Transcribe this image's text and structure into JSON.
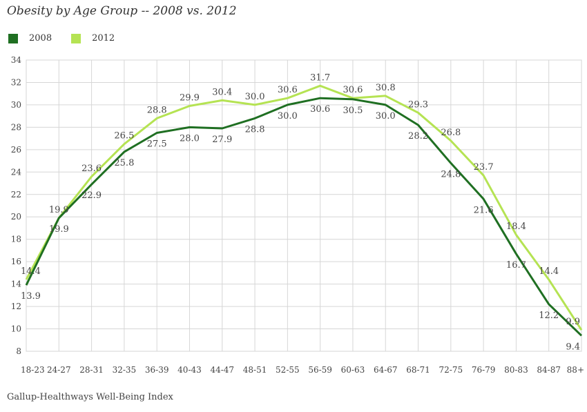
{
  "chart_data": {
    "type": "line",
    "title": "Obesity by Age Group -- 2008 vs. 2012",
    "source": "Gallup-Healthways Well-Being Index",
    "categories": [
      "18-23",
      "24-27",
      "28-31",
      "32-35",
      "36-39",
      "40-43",
      "44-47",
      "48-51",
      "52-55",
      "56-59",
      "60-63",
      "64-67",
      "68-71",
      "72-75",
      "76-79",
      "80-83",
      "84-87",
      "88+"
    ],
    "series": [
      {
        "name": "2008",
        "color": "#1f6f22",
        "values": [
          13.9,
          19.9,
          22.9,
          25.8,
          27.5,
          28.0,
          27.9,
          28.8,
          30.0,
          30.6,
          30.5,
          30.0,
          28.2,
          24.8,
          21.6,
          16.7,
          12.2,
          9.4
        ]
      },
      {
        "name": "2012",
        "color": "#b5e353",
        "values": [
          14.4,
          19.9,
          23.6,
          26.5,
          28.8,
          29.9,
          30.4,
          30.0,
          30.6,
          31.7,
          30.6,
          30.8,
          29.3,
          26.8,
          23.7,
          18.4,
          14.4,
          9.9
        ]
      }
    ],
    "ylim": [
      8,
      34
    ],
    "yticks": [
      8,
      10,
      12,
      14,
      16,
      18,
      20,
      22,
      24,
      26,
      28,
      30,
      32,
      34
    ],
    "grid": true,
    "legend_position": "top-left"
  }
}
